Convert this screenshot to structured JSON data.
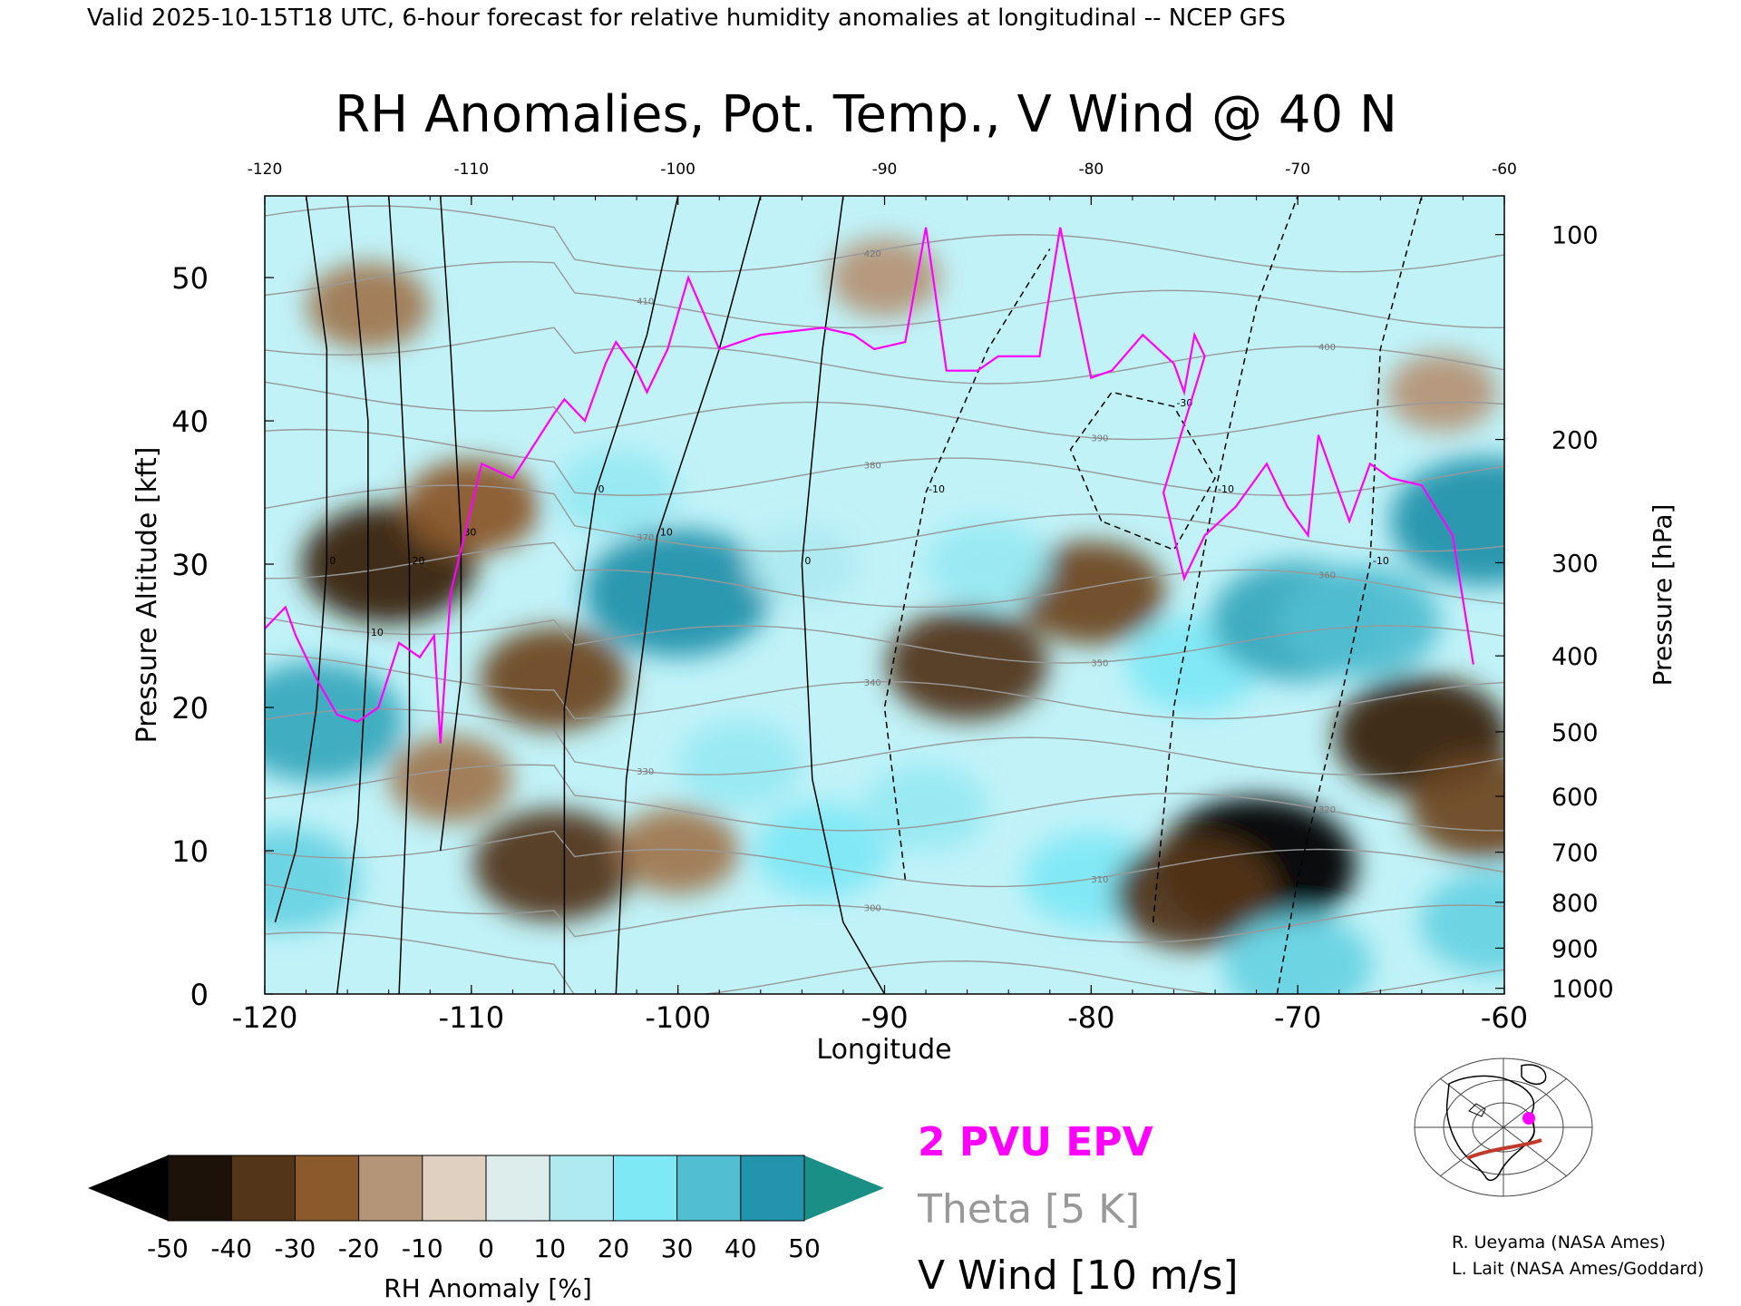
{
  "header": {
    "valid_line": "Valid 2025-10-15T18 UTC, 6-hour forecast for relative humidity anomalies at longitudinal -- NCEP GFS"
  },
  "chart_data": {
    "type": "heatmap",
    "title": "RH Anomalies, Pot. Temp., V Wind @ 40 N",
    "xlabel": "Longitude",
    "ylabel": "Pressure Altitude [kft]",
    "y2label": "Pressure [hPa]",
    "xlim": [
      -120,
      -60
    ],
    "ylim": [
      0,
      55.7
    ],
    "x_ticks": [
      "-120",
      "-110",
      "-100",
      "-90",
      "-80",
      "-70",
      "-60"
    ],
    "x_top_ticks": [
      "-120",
      "-110",
      "-100",
      "-90",
      "-80",
      "-70",
      "-60"
    ],
    "y_ticks": [
      "0",
      "10",
      "20",
      "30",
      "40",
      "50"
    ],
    "pressure_ticks": [
      {
        "label": "100",
        "kft": 53.0
      },
      {
        "label": "200",
        "kft": 38.7
      },
      {
        "label": "300",
        "kft": 30.1
      },
      {
        "label": "400",
        "kft": 23.6
      },
      {
        "label": "500",
        "kft": 18.3
      },
      {
        "label": "600",
        "kft": 13.8
      },
      {
        "label": "700",
        "kft": 9.9
      },
      {
        "label": "800",
        "kft": 6.4
      },
      {
        "label": "900",
        "kft": 3.2
      },
      {
        "label": "1000",
        "kft": 0.4
      }
    ],
    "rh_anomaly_blobs": [
      {
        "lon": -117.5,
        "kft": 19,
        "value": 40
      },
      {
        "lon": -119,
        "kft": 8,
        "value": 30
      },
      {
        "lon": -114,
        "kft": 30,
        "value": -40
      },
      {
        "lon": -110,
        "kft": 34,
        "value": -25
      },
      {
        "lon": -111,
        "kft": 15,
        "value": -20
      },
      {
        "lon": -106,
        "kft": 22,
        "value": -30
      },
      {
        "lon": -106,
        "kft": 9,
        "value": -35
      },
      {
        "lon": -103,
        "kft": 35,
        "value": 20
      },
      {
        "lon": -100,
        "kft": 28,
        "value": 45
      },
      {
        "lon": -100,
        "kft": 10,
        "value": -20
      },
      {
        "lon": -97,
        "kft": 16,
        "value": 20
      },
      {
        "lon": -94,
        "kft": 30,
        "value": 15
      },
      {
        "lon": -93,
        "kft": 10,
        "value": 25
      },
      {
        "lon": -86,
        "kft": 23,
        "value": -35
      },
      {
        "lon": -80,
        "kft": 28,
        "value": -30
      },
      {
        "lon": -85,
        "kft": 30,
        "value": 20
      },
      {
        "lon": -88,
        "kft": 13,
        "value": 20
      },
      {
        "lon": -80,
        "kft": 8,
        "value": 25
      },
      {
        "lon": -75,
        "kft": 23,
        "value": 25
      },
      {
        "lon": -70,
        "kft": 26,
        "value": 40
      },
      {
        "lon": -67,
        "kft": 26,
        "value": 35
      },
      {
        "lon": -72,
        "kft": 9,
        "value": -50
      },
      {
        "lon": -75,
        "kft": 7,
        "value": -35
      },
      {
        "lon": -64,
        "kft": 18,
        "value": -40
      },
      {
        "lon": -61,
        "kft": 13,
        "value": -30
      },
      {
        "lon": -61,
        "kft": 33,
        "value": 45
      },
      {
        "lon": -70,
        "kft": 2,
        "value": 30
      },
      {
        "lon": -60.5,
        "kft": 5,
        "value": 30
      },
      {
        "lon": -63,
        "kft": 42,
        "value": -15
      },
      {
        "lon": -90,
        "kft": 50,
        "value": -15
      },
      {
        "lon": -115,
        "kft": 48,
        "value": -20
      }
    ],
    "theta_levels_K": [
      290,
      300,
      310,
      320,
      330,
      340,
      350,
      360,
      370,
      380,
      390,
      400,
      410,
      420
    ],
    "epv_2pvu_line": [
      [
        -120,
        25.5
      ],
      [
        -119,
        27
      ],
      [
        -118.5,
        25
      ],
      [
        -117.5,
        22
      ],
      [
        -116.5,
        19.5
      ],
      [
        -115.5,
        19
      ],
      [
        -114.5,
        20
      ],
      [
        -113.5,
        24.5
      ],
      [
        -112.5,
        23.5
      ],
      [
        -111.8,
        25
      ],
      [
        -111.5,
        17.5
      ],
      [
        -111,
        28
      ],
      [
        -109.5,
        37
      ],
      [
        -108,
        36
      ],
      [
        -106,
        40.5
      ],
      [
        -105.5,
        41.5
      ],
      [
        -104.5,
        40
      ],
      [
        -103.5,
        44
      ],
      [
        -103,
        45.5
      ],
      [
        -102,
        43.5
      ],
      [
        -101.5,
        42
      ],
      [
        -100.5,
        45
      ],
      [
        -99.5,
        50
      ],
      [
        -98,
        45
      ],
      [
        -96,
        46
      ],
      [
        -93,
        46.5
      ],
      [
        -91.5,
        46
      ],
      [
        -90.5,
        45
      ],
      [
        -89,
        45.5
      ],
      [
        -88,
        53.5
      ],
      [
        -87,
        43.5
      ],
      [
        -85.5,
        43.5
      ],
      [
        -84.5,
        44.5
      ],
      [
        -82.5,
        44.5
      ],
      [
        -81.5,
        53.5
      ],
      [
        -80,
        43
      ],
      [
        -79,
        43.5
      ],
      [
        -77.5,
        46
      ],
      [
        -76,
        44
      ],
      [
        -75.5,
        42
      ],
      [
        -75,
        46
      ],
      [
        -74.5,
        44.5
      ],
      [
        -76.5,
        35
      ],
      [
        -75.5,
        29
      ],
      [
        -74.5,
        32
      ],
      [
        -73,
        34
      ],
      [
        -71.5,
        37
      ],
      [
        -70.5,
        34
      ],
      [
        -69.5,
        32
      ],
      [
        -69,
        39
      ],
      [
        -68.5,
        37
      ],
      [
        -67.5,
        33
      ],
      [
        -66.5,
        37
      ],
      [
        -65.5,
        36
      ],
      [
        -64,
        35.5
      ],
      [
        -62.5,
        32
      ],
      [
        -61.5,
        23
      ]
    ],
    "v_wind_contours_10ms": [
      {
        "label": "0",
        "line": [
          [
            -119.5,
            5
          ],
          [
            -118.5,
            10
          ],
          [
            -117.5,
            20
          ],
          [
            -117,
            30
          ],
          [
            -117,
            45
          ],
          [
            -118,
            55.7
          ]
        ]
      },
      {
        "label": "10",
        "line": [
          [
            -116.5,
            0
          ],
          [
            -115.5,
            12
          ],
          [
            -115,
            25
          ],
          [
            -115,
            40
          ],
          [
            -116,
            55.7
          ]
        ]
      },
      {
        "label": "20",
        "line": [
          [
            -113.5,
            0
          ],
          [
            -113,
            18
          ],
          [
            -113,
            30
          ],
          [
            -113.5,
            45
          ],
          [
            -114,
            55.7
          ]
        ]
      },
      {
        "label": "30",
        "line": [
          [
            -111.5,
            10
          ],
          [
            -110.5,
            22
          ],
          [
            -110.5,
            32
          ],
          [
            -111,
            45
          ],
          [
            -111.5,
            55.7
          ]
        ]
      },
      {
        "label": "0",
        "line": [
          [
            -105.5,
            0
          ],
          [
            -105.5,
            20
          ],
          [
            -104,
            35
          ],
          [
            -101.5,
            46
          ],
          [
            -100,
            55.7
          ]
        ]
      },
      {
        "label": "10",
        "line": [
          [
            -103,
            0
          ],
          [
            -102.5,
            15
          ],
          [
            -101,
            32
          ],
          [
            -98,
            45
          ],
          [
            -96,
            55.7
          ]
        ]
      },
      {
        "label": "0",
        "line": [
          [
            -90,
            0
          ],
          [
            -92,
            5
          ],
          [
            -93.5,
            15
          ],
          [
            -94,
            30
          ],
          [
            -93,
            45
          ],
          [
            -92,
            55.7
          ]
        ]
      },
      {
        "label": "-10",
        "dashed": true,
        "line": [
          [
            -89,
            8
          ],
          [
            -90,
            20
          ],
          [
            -88,
            35
          ],
          [
            -85,
            45
          ],
          [
            -82,
            52
          ]
        ]
      },
      {
        "label": "-10",
        "dashed": true,
        "line": [
          [
            -77,
            5
          ],
          [
            -76,
            20
          ],
          [
            -74,
            35
          ],
          [
            -72,
            48
          ],
          [
            -70,
            55.7
          ]
        ]
      },
      {
        "label": "-30",
        "dashed": true,
        "line": [
          [
            -79.5,
            33
          ],
          [
            -81,
            38
          ],
          [
            -79,
            42
          ],
          [
            -76,
            41
          ],
          [
            -74,
            36
          ],
          [
            -76,
            31
          ],
          [
            -79.5,
            33
          ]
        ]
      },
      {
        "label": "-10",
        "dashed": true,
        "line": [
          [
            -71,
            0
          ],
          [
            -70,
            8
          ],
          [
            -68,
            20
          ],
          [
            -66.5,
            30
          ],
          [
            -66,
            45
          ],
          [
            -64,
            55.7
          ]
        ]
      }
    ]
  },
  "legend": {
    "colorbar_ticks": [
      "-50",
      "-40",
      "-30",
      "-20",
      "-10",
      "0",
      "10",
      "20",
      "30",
      "40",
      "50"
    ],
    "colorbar_label": "RH Anomaly [%]",
    "epv_label": "2 PVU EPV",
    "theta_label": "Theta [5 K]",
    "wind_label": "V Wind [10 m/s]",
    "colors": {
      "epv": "#ff00ff",
      "theta": "#999999",
      "wind": "#000000",
      "dry_min": "#000000",
      "dry_mid": "#8b5a2b",
      "neutral": "#f5eee8",
      "moist_mid": "#7fe8f5",
      "moist_max": "#0b7f9a",
      "over": "#1a8f86"
    }
  },
  "credits": {
    "line1": "R. Ueyama (NASA Ames)",
    "line2": "L. Lait (NASA Ames/Goddard)"
  }
}
